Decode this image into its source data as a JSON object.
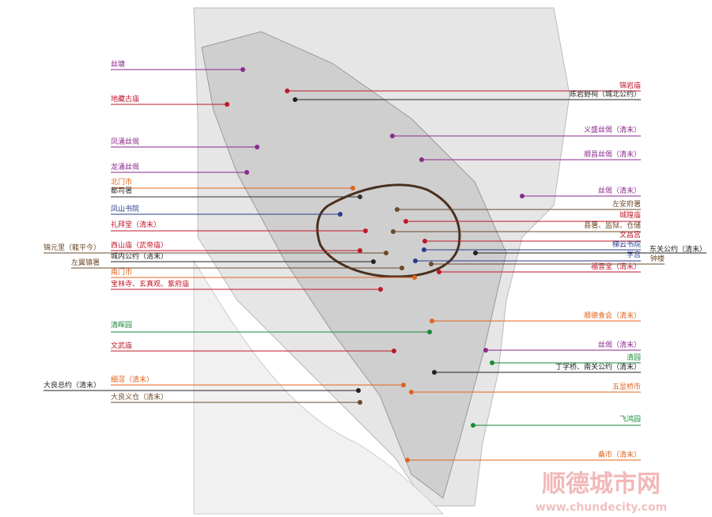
{
  "labels": [
    {
      "text": "丝塘",
      "color": "#8b2a8b"
    },
    {
      "text": "地藏古庙",
      "color": "#c0172b"
    },
    {
      "text": "凤涌丝偈",
      "color": "#8b2a8b"
    },
    {
      "text": "龙涌丝偈",
      "color": "#8b2a8b"
    },
    {
      "text": "北门市",
      "color": "#e0641e"
    },
    {
      "text": "都司署",
      "color": "#333333"
    },
    {
      "text": "凤山书院",
      "color": "#2c3a8c"
    },
    {
      "text": "礼拜堂（清末）",
      "color": "#c0172b"
    },
    {
      "text": "西山庙（武帝庙）",
      "color": "#c0172b"
    },
    {
      "text": "城内公约（清末）",
      "color": "#222222"
    },
    {
      "text": "南门市",
      "color": "#e0641e"
    },
    {
      "text": "宝林寺、玄真观、紫府庙",
      "color": "#c0172b"
    },
    {
      "text": "清晖园",
      "color": "#1a8a3a"
    },
    {
      "text": "文武庙",
      "color": "#c0172b"
    },
    {
      "text": "细滘（清末）",
      "color": "#e0641e"
    },
    {
      "text": "大良义仓（清末）",
      "color": "#6b4a2a"
    },
    {
      "text": "锦元里（龍平今）",
      "color": "#6b4a2a"
    },
    {
      "text": "左翼镇署",
      "color": "#6b4a2a"
    },
    {
      "text": "大良总约（清末）",
      "color": "#222222"
    },
    {
      "text": "锦岩庙",
      "color": "#c0172b"
    },
    {
      "text": "陈岩野祠（城北公约）",
      "color": "#222222"
    },
    {
      "text": "义盛丝偈（清末）",
      "color": "#8b2a8b"
    },
    {
      "text": "顺昌丝偈（清末）",
      "color": "#8b2a8b"
    },
    {
      "text": "丝偈（清末）",
      "color": "#8b2a8b"
    },
    {
      "text": "左安府署",
      "color": "#6b4a2a"
    },
    {
      "text": "城隍庙",
      "color": "#c0172b"
    },
    {
      "text": "县署、监狱、仓储",
      "color": "#6b4a2a"
    },
    {
      "text": "文昌宫",
      "color": "#c0172b"
    },
    {
      "text": "梯云书院",
      "color": "#2c3a8c"
    },
    {
      "text": "学宫",
      "color": "#2c3a8c"
    },
    {
      "text": "福音堂（清末）",
      "color": "#c0172b"
    },
    {
      "text": "东关公约（清末）",
      "color": "#222222"
    },
    {
      "text": "钟楼",
      "color": "#6b4a2a"
    },
    {
      "text": "顺德食会（清末）",
      "color": "#e0641e"
    },
    {
      "text": "丝偈（清末）",
      "color": "#8b2a8b"
    },
    {
      "text": "清园",
      "color": "#1a8a3a"
    },
    {
      "text": "丁字桥、南关公约（清末）",
      "color": "#222222"
    },
    {
      "text": "五显桥市",
      "color": "#e0641e"
    },
    {
      "text": "飞鸿园",
      "color": "#1a8a3a"
    },
    {
      "text": "桑市（清末）",
      "color": "#e0641e"
    }
  ],
  "watermark": {
    "title": "顺德城市网",
    "url": "www.chundecity.com"
  }
}
